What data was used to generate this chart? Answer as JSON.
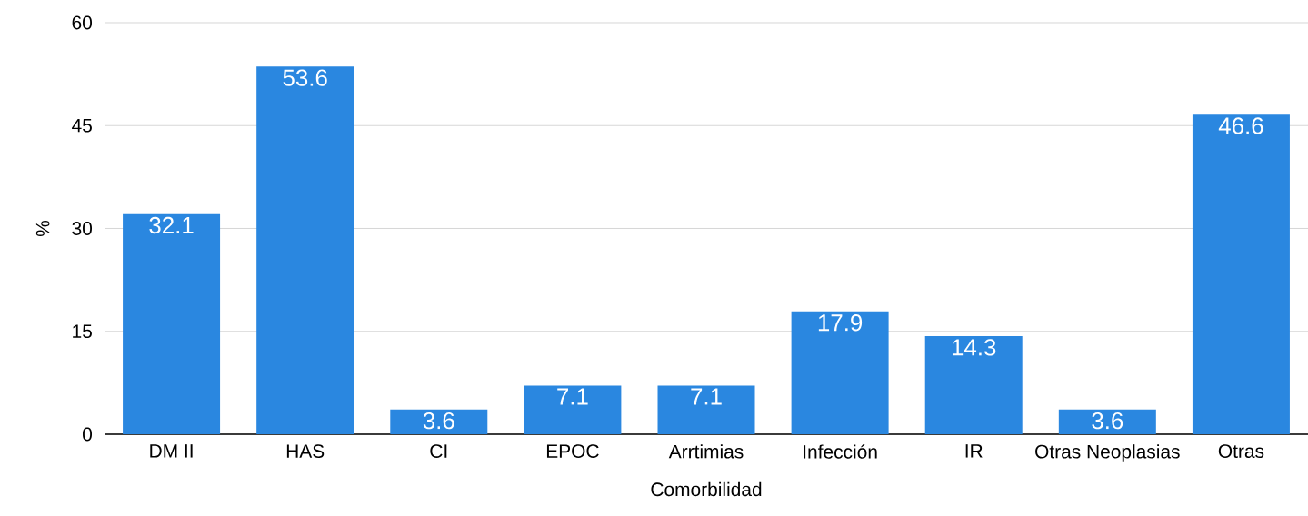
{
  "chart_data": {
    "type": "bar",
    "xlabel": "Comorbilidad",
    "ylabel": "%",
    "categories": [
      "DM II",
      "HAS",
      "CI",
      "EPOC",
      "Arrtimias",
      "Infección",
      "IR",
      "Otras Neoplasias",
      "Otras"
    ],
    "values": [
      32.1,
      53.6,
      3.6,
      7.1,
      7.1,
      17.9,
      14.3,
      3.6,
      46.6
    ],
    "color": "#2a87e0",
    "ylim": [
      0,
      60
    ],
    "yticks": [
      0,
      15,
      30,
      45,
      60
    ],
    "grid": "y",
    "data_labels": true
  }
}
